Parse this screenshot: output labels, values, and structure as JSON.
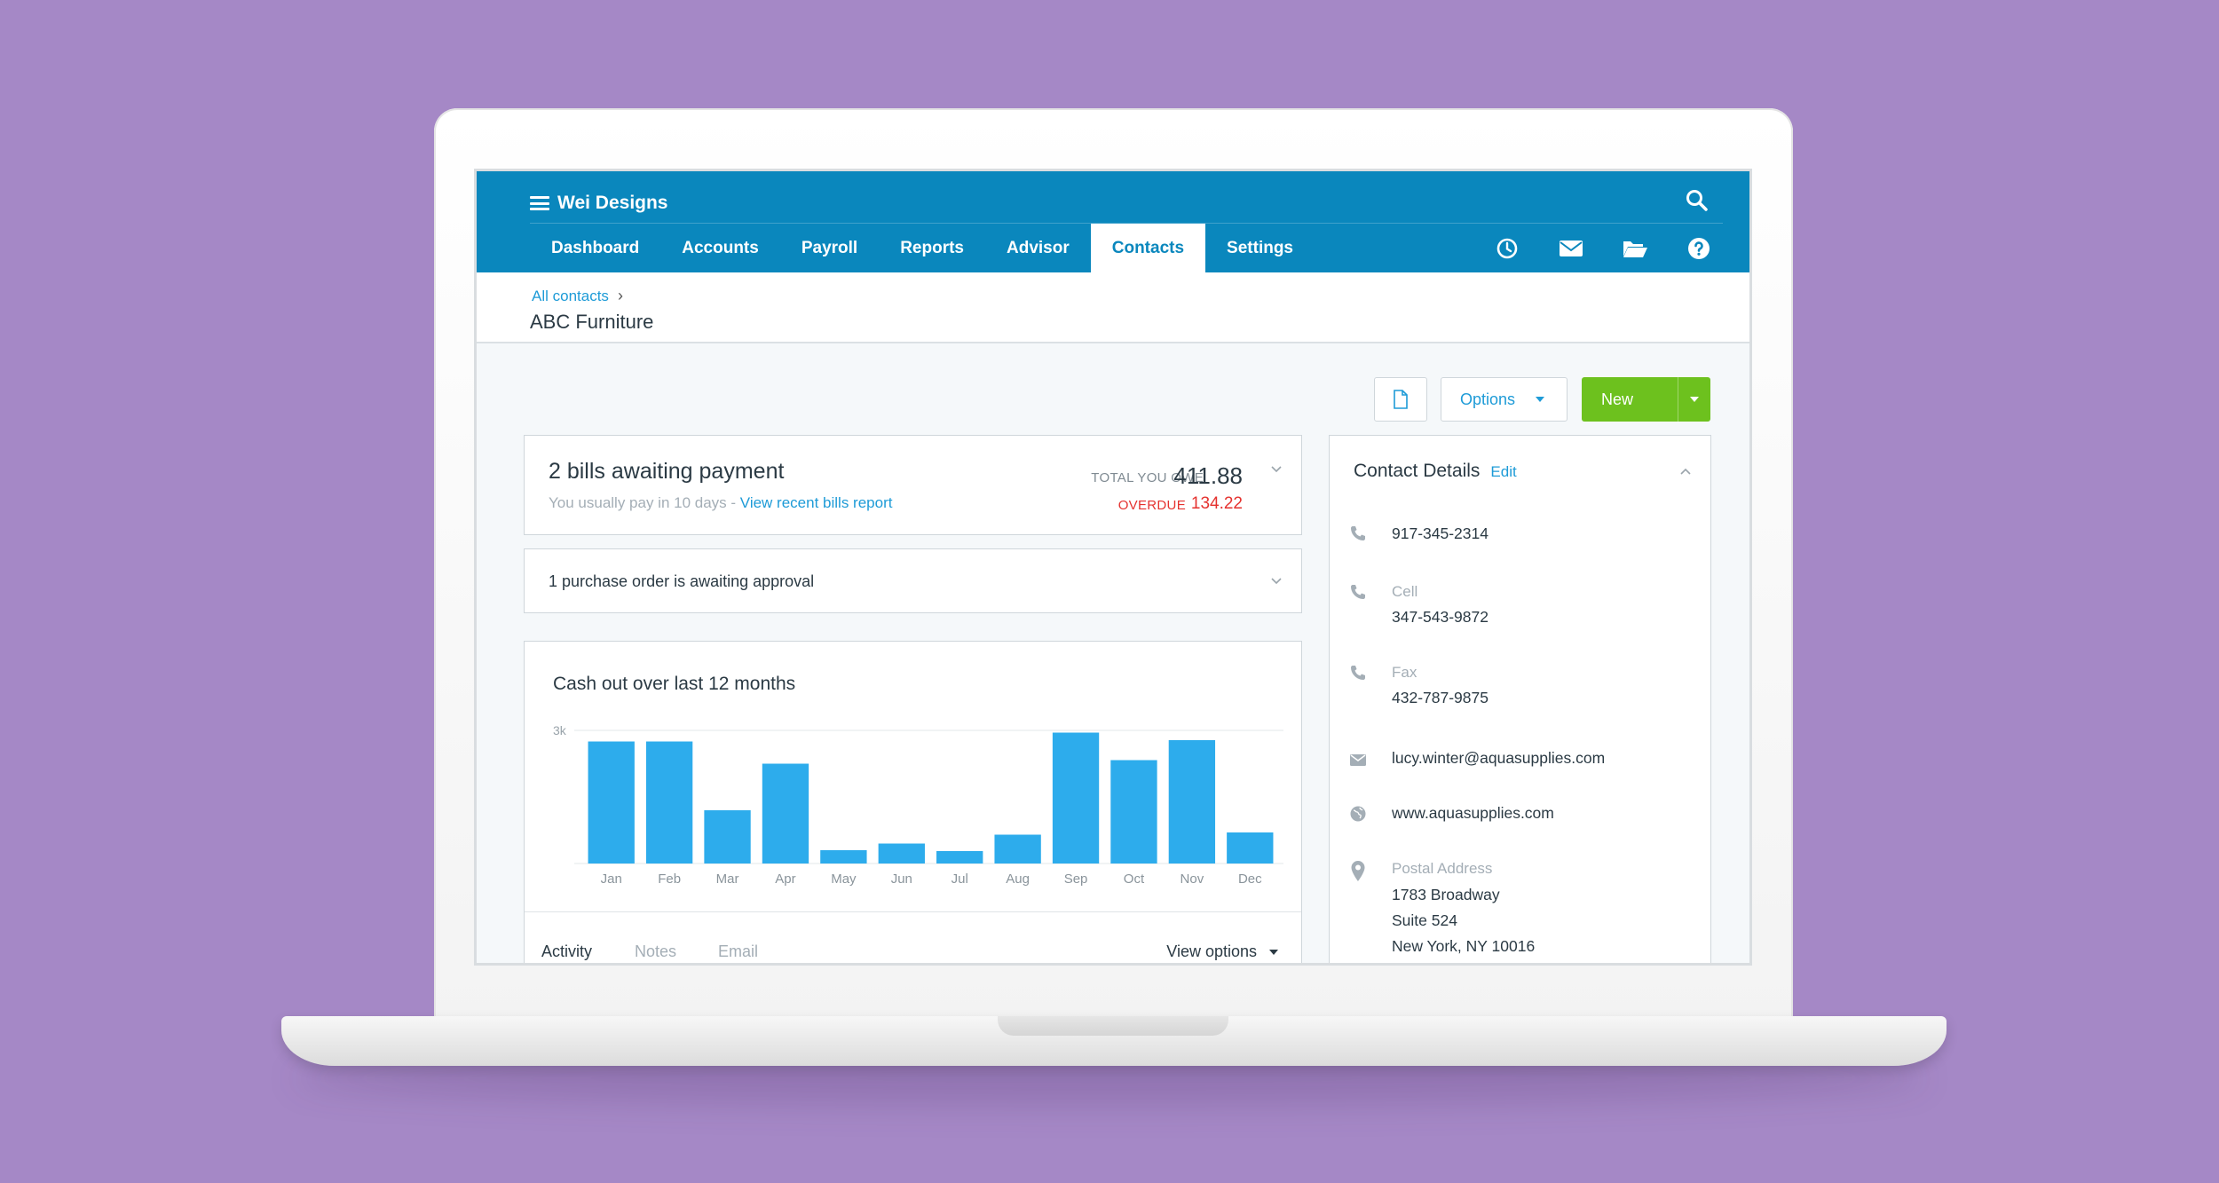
{
  "app": {
    "org_name": "Wei Designs",
    "search_icon": "search-icon",
    "nav": [
      "Dashboard",
      "Accounts",
      "Payroll",
      "Reports",
      "Advisor",
      "Contacts",
      "Settings"
    ],
    "active_tab": "Contacts",
    "nav_icons": [
      "clock-icon",
      "mail-icon",
      "folder-icon",
      "help-icon"
    ],
    "colors": {
      "topbar": "#0a87bd",
      "accent": "#1e9bd7",
      "new_button": "#6dc11e",
      "overdue": "#e5322f",
      "bar": "#2dacec",
      "background": "#a588c6"
    }
  },
  "header": {
    "breadcrumb": "All contacts",
    "breadcrumb_sep": "›",
    "title": "ABC Furniture"
  },
  "toolbar": {
    "doc_icon": "document-icon",
    "options_label": "Options",
    "new_label": "New"
  },
  "bills": {
    "title": "2 bills awaiting payment",
    "sub_text": "You usually pay in 10 days - ",
    "sub_link": "View recent bills report",
    "total_label": "TOTAL YOU OWE",
    "total_value": "411.88",
    "overdue_label": "OVERDUE",
    "overdue_value": "134.22"
  },
  "purchase_order": {
    "text": "1 purchase order is awaiting approval"
  },
  "chart": {
    "title": "Cash out over last 12 months",
    "y_tick": "3k"
  },
  "chart_data": {
    "type": "bar",
    "title": "Cash out over last 12 months",
    "categories": [
      "Jan",
      "Feb",
      "Mar",
      "Apr",
      "May",
      "Jun",
      "Jul",
      "Aug",
      "Sep",
      "Oct",
      "Nov",
      "Dec"
    ],
    "values": [
      2750,
      2750,
      1200,
      2250,
      300,
      450,
      280,
      650,
      2950,
      2330,
      2780,
      700
    ],
    "ylim": [
      0,
      3000
    ],
    "yticks": [
      "3k"
    ],
    "grid": true,
    "color": "#2dacec"
  },
  "activity_tabs": {
    "tabs": [
      "Activity",
      "Notes",
      "Email"
    ],
    "active": "Activity",
    "view_options": "View options"
  },
  "contact": {
    "title": "Contact Details",
    "edit": "Edit",
    "phone": "917-345-2314",
    "cell_label": "Cell",
    "cell": "347-543-9872",
    "fax_label": "Fax",
    "fax": "432-787-9875",
    "email": "lucy.winter@aquasupplies.com",
    "website": "www.aquasupplies.com",
    "postal_label": "Postal Address",
    "address_line1": "1783 Broadway",
    "address_line2": "Suite 524",
    "address_line3": "New York, NY 10016"
  }
}
